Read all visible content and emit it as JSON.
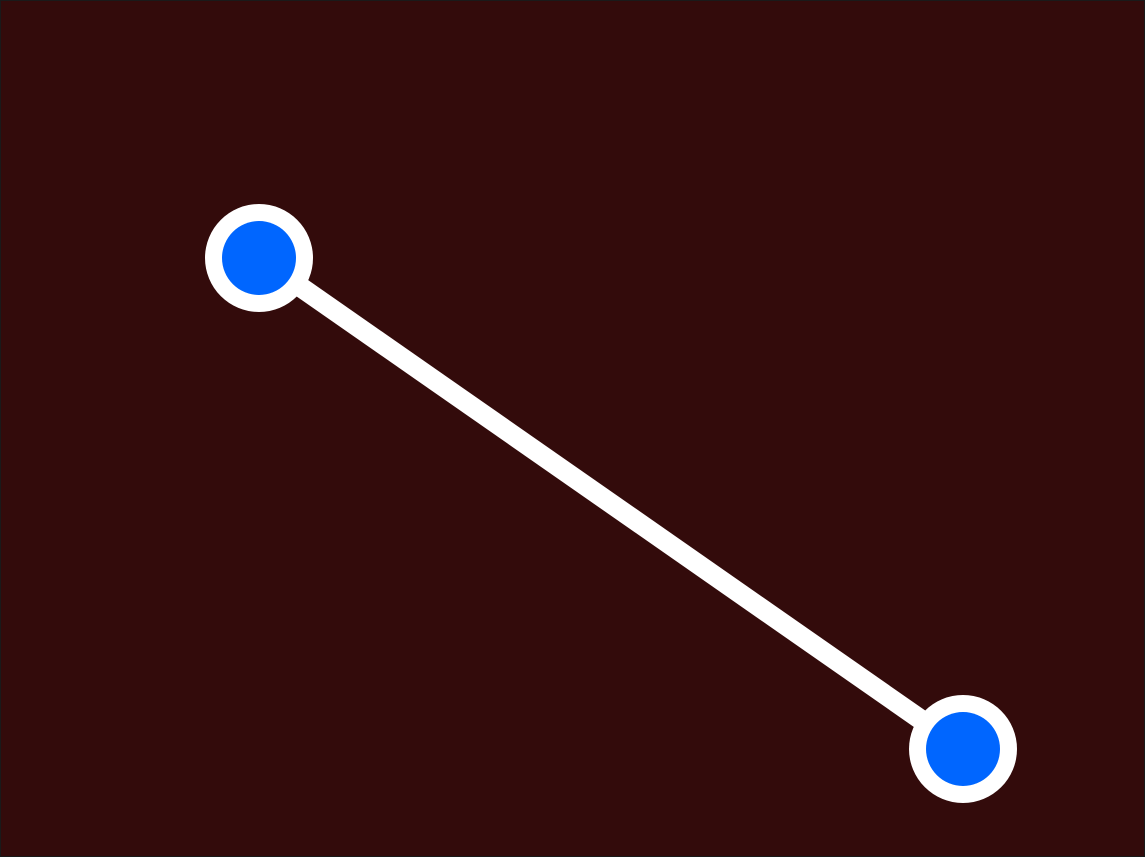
{
  "scene": {
    "background_color": "#330b0b",
    "border_color": "#1a1a1a",
    "connector_color": "#ffffff",
    "handle_fill_color": "#0066ff",
    "handle_ring_color": "#ffffff",
    "connector": {
      "kind": "straight-line-segment",
      "direction": "upper-left-to-lower-right"
    },
    "handles": [
      {
        "name": "start-handle",
        "role": "start endpoint",
        "icon": "circle-handle-icon"
      },
      {
        "name": "end-handle",
        "role": "end endpoint",
        "icon": "circle-handle-icon"
      }
    ]
  }
}
